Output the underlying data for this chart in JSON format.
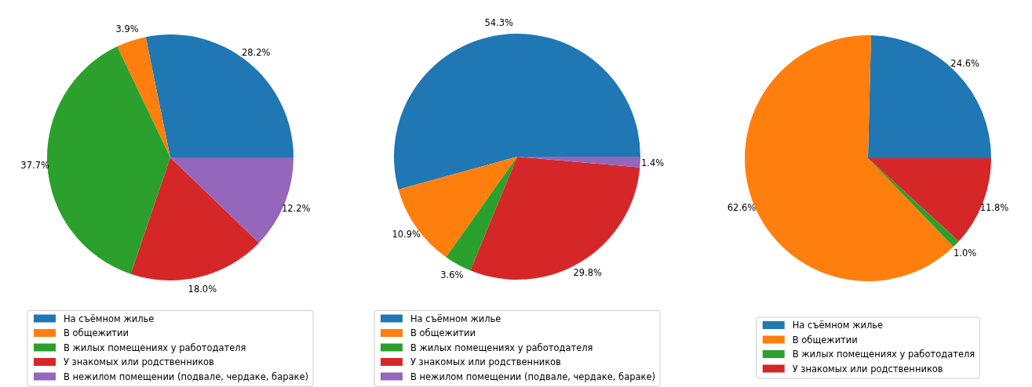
{
  "chart_data": [
    {
      "type": "pie",
      "categories": [
        "На съёмном жилье",
        "В общежитии",
        "В жилых помещениях у работодателя",
        "У знакомых или родственников",
        "В нежилом помещении (подвале, чердаке, бараке)"
      ],
      "values": [
        28.2,
        3.9,
        37.7,
        18.0,
        12.2
      ],
      "colors": [
        "#1f77b4",
        "#ff7f0e",
        "#2ca02c",
        "#d62728",
        "#9467bd"
      ],
      "value_labels": [
        "28.2%",
        "3.9%",
        "37.7%",
        "18.0%",
        "12.2%"
      ],
      "legend": "bottom"
    },
    {
      "type": "pie",
      "categories": [
        "На съёмном жилье",
        "В общежитии",
        "В жилых помещениях у работодателя",
        "У знакомых или родственников",
        "В нежилом помещении (подвале, чердаке, бараке)"
      ],
      "values": [
        54.3,
        10.9,
        3.6,
        29.8,
        1.4
      ],
      "colors": [
        "#1f77b4",
        "#ff7f0e",
        "#2ca02c",
        "#d62728",
        "#9467bd"
      ],
      "value_labels": [
        "54.3%",
        "10.9%",
        "3.6%",
        "29.8%",
        "1.4%"
      ],
      "legend": "bottom"
    },
    {
      "type": "pie",
      "categories": [
        "На съёмном жилье",
        "В общежитии",
        "В жилых помещениях у работодателя",
        "У знакомых или родственников"
      ],
      "values": [
        24.6,
        62.6,
        1.0,
        11.8
      ],
      "colors": [
        "#1f77b4",
        "#ff7f0e",
        "#2ca02c",
        "#d62728"
      ],
      "value_labels": [
        "24.6%",
        "62.6%",
        "1.0%",
        "11.8%"
      ],
      "legend": "bottom"
    }
  ]
}
